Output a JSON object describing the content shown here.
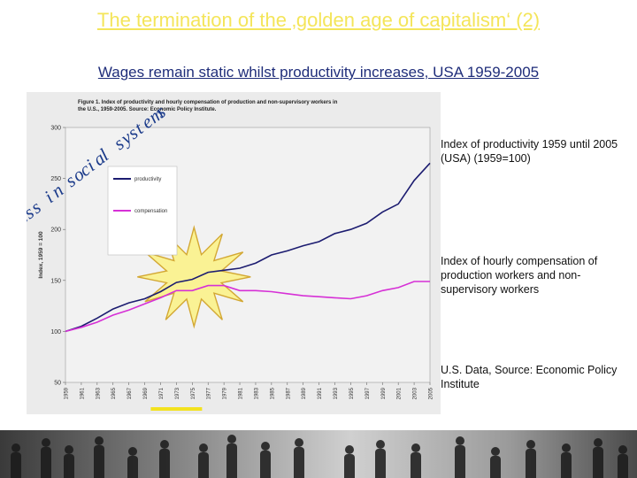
{
  "slide": {
    "title": "The termination of the ‚golden age of capitalism‘ (2)",
    "subtitle": "Wages remain static whilst productivity increases, USA 1959-2005",
    "notes": {
      "productivity": "Index of productivity 1959 until 2005 (USA) (1959=100)",
      "compensation": "Index of hourly compensation of production workers and non-supervisory workers",
      "source": "U.S. Data, Source: Economic Policy Institute"
    },
    "overlay_text": "Stress in social systems",
    "colors": {
      "title": "#f4e55a",
      "subtitle": "#1f2d7a",
      "highlight": "#f3e21f",
      "productivity": "#1c1c70",
      "compensation": "#d630d6"
    }
  },
  "chart_data": {
    "type": "line",
    "title": "Figure 1. Index of productivity and hourly compensation of production and non-supervisory workers in the U.S., 1959-2005. Source: Economic Policy Institute.",
    "ylabel": "Index, 1959 = 100",
    "ylim": [
      50,
      300
    ],
    "yticks": [
      50,
      100,
      150,
      200,
      250,
      300
    ],
    "xlim": [
      1959,
      2005
    ],
    "xticks": [
      1959,
      1961,
      1963,
      1965,
      1967,
      1969,
      1971,
      1973,
      1975,
      1977,
      1979,
      1981,
      1983,
      1985,
      1987,
      1989,
      1991,
      1993,
      1995,
      1997,
      1999,
      2001,
      2003,
      2005
    ],
    "legend_position": "top-left",
    "highlight_year": 1973,
    "series": [
      {
        "name": "productivity",
        "color": "#1c1c70",
        "x": [
          1959,
          1961,
          1963,
          1965,
          1967,
          1969,
          1971,
          1973,
          1975,
          1977,
          1979,
          1981,
          1983,
          1985,
          1987,
          1989,
          1991,
          1993,
          1995,
          1997,
          1999,
          2001,
          2003,
          2005
        ],
        "values": [
          100,
          105,
          113,
          122,
          128,
          132,
          139,
          148,
          151,
          158,
          160,
          162,
          167,
          175,
          179,
          184,
          188,
          196,
          200,
          206,
          217,
          225,
          248,
          265
        ]
      },
      {
        "name": "compensation",
        "color": "#d630d6",
        "x": [
          1959,
          1961,
          1963,
          1965,
          1967,
          1969,
          1971,
          1973,
          1975,
          1977,
          1979,
          1981,
          1983,
          1985,
          1987,
          1989,
          1991,
          1993,
          1995,
          1997,
          1999,
          2001,
          2003,
          2005
        ],
        "values": [
          100,
          104,
          109,
          116,
          121,
          127,
          133,
          140,
          140,
          145,
          145,
          140,
          140,
          139,
          137,
          135,
          134,
          133,
          132,
          135,
          140,
          143,
          149,
          149
        ]
      }
    ]
  }
}
